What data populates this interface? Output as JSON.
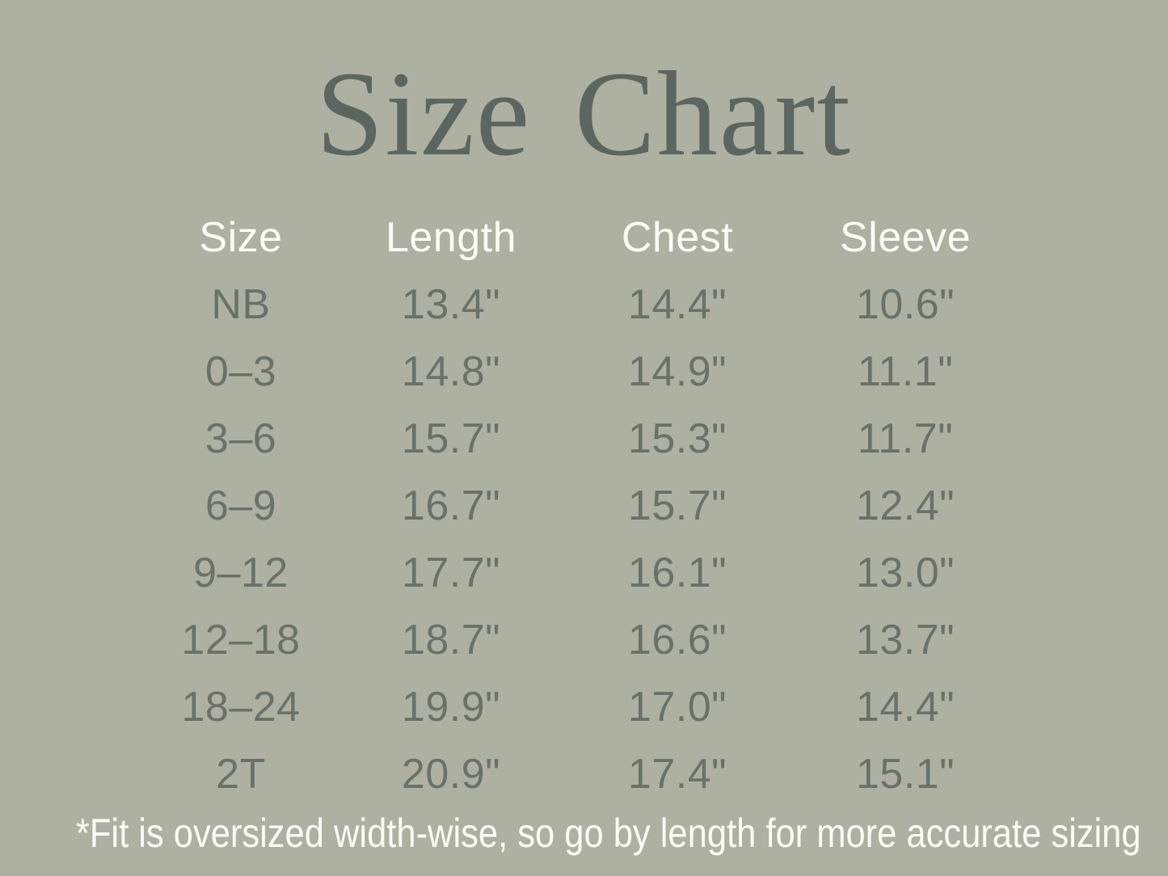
{
  "title": "Size Chart",
  "colors": {
    "background": "#aeb1a1",
    "title_text": "#5c6660",
    "table_text": "#68726b",
    "header_text": "#fbfbf6",
    "footnote_text": "#fbfbf6"
  },
  "chart_data": {
    "type": "table",
    "title": "Size Chart",
    "columns": [
      "Size",
      "Length",
      "Chest",
      "Sleeve"
    ],
    "rows": [
      [
        "NB",
        "13.4\"",
        "14.4\"",
        "10.6\""
      ],
      [
        "0–3",
        "14.8\"",
        "14.9\"",
        "11.1\""
      ],
      [
        "3–6",
        "15.7\"",
        "15.3\"",
        "11.7\""
      ],
      [
        "6–9",
        "16.7\"",
        "15.7\"",
        "12.4\""
      ],
      [
        "9–12",
        "17.7\"",
        "16.1\"",
        "13.0\""
      ],
      [
        "12–18",
        "18.7\"",
        "16.6\"",
        "13.7\""
      ],
      [
        "18–24",
        "19.9\"",
        "17.0\"",
        "14.4\""
      ],
      [
        "2T",
        "20.9\"",
        "17.4\"",
        "15.1\""
      ]
    ],
    "units": "inches",
    "footnote": "*Fit is oversized width-wise, so go by length for more accurate sizing"
  }
}
